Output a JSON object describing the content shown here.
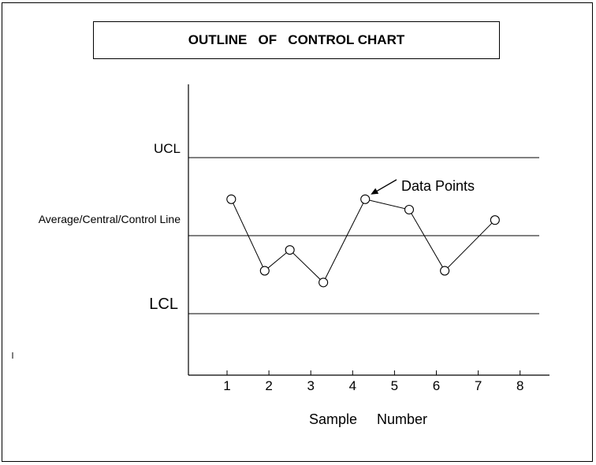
{
  "chart_data": {
    "type": "line",
    "title": "OUTLINE   OF   CONTROL CHART",
    "xlabel": "Sample     Number",
    "x_ticks": [
      1,
      2,
      3,
      4,
      5,
      6,
      7,
      8
    ],
    "x_range": [
      0,
      8.7
    ],
    "reference_lines": [
      {
        "label": "UCL",
        "value": 3
      },
      {
        "label": "Average/Central/Control Line",
        "value": 0
      },
      {
        "label": "LCL",
        "value": -3
      }
    ],
    "annotation": "Data Points",
    "points": [
      {
        "x": 1.1,
        "y": 1.4
      },
      {
        "x": 1.9,
        "y": -1.35
      },
      {
        "x": 2.5,
        "y": -0.55
      },
      {
        "x": 3.3,
        "y": -1.8
      },
      {
        "x": 4.3,
        "y": 1.4
      },
      {
        "x": 5.35,
        "y": 1.0
      },
      {
        "x": 6.2,
        "y": -1.35
      },
      {
        "x": 7.4,
        "y": 0.6
      }
    ],
    "grid": false,
    "legend": "none"
  }
}
